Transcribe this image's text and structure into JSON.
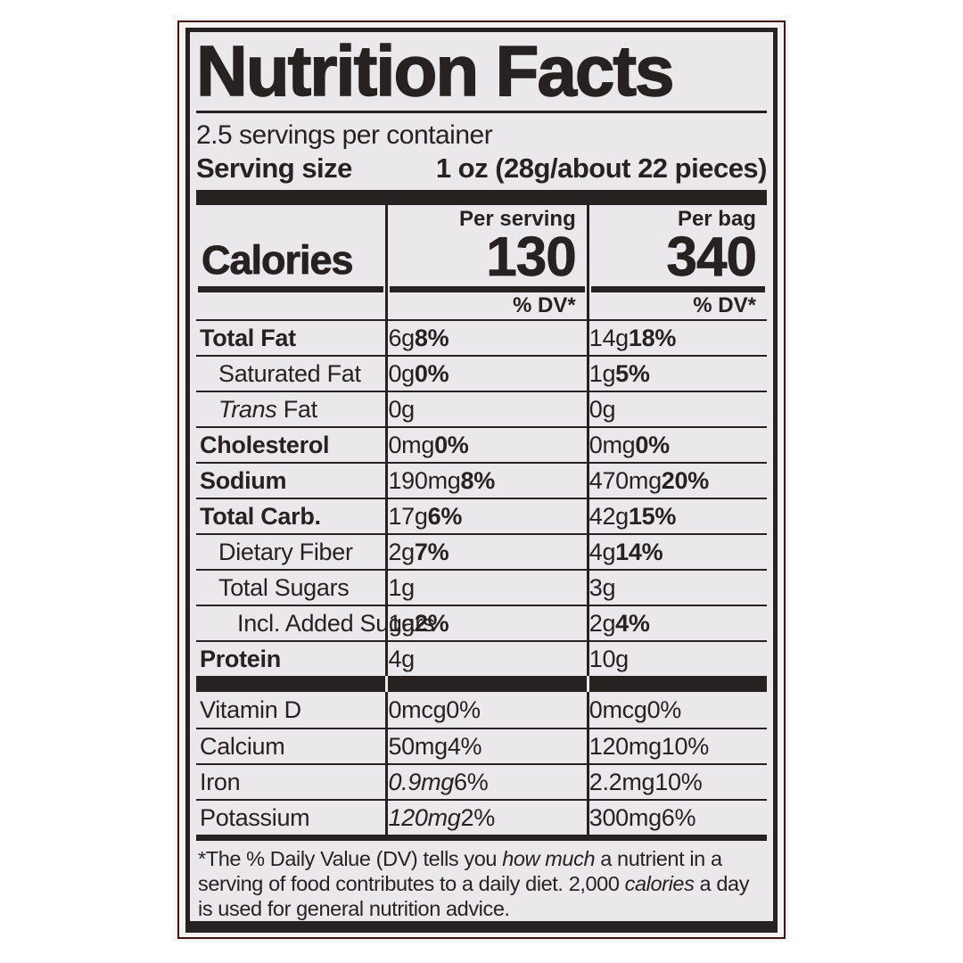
{
  "colors": {
    "ink": "#272122",
    "label_bg": "#eae8ea",
    "package_bg": "#f3f1f2",
    "package_edge": "#401410",
    "page_bg": "#ffffff"
  },
  "label": {
    "title": "Nutrition Facts",
    "servings_per_container": "2.5 servings per container",
    "serving_size_label": "Serving size",
    "serving_size_value": "1 oz (28g/about 22 pieces)",
    "calories": {
      "word": "Calories",
      "per_serving_header": "Per serving",
      "per_bag_header": "Per bag",
      "per_serving_value": "130",
      "per_bag_value": "340"
    },
    "dv_header": "% DV*",
    "nutrients": [
      {
        "name": [
          {
            "t": "Total Fat"
          }
        ],
        "bold": true,
        "indent": 0,
        "s_amt": "6g",
        "s_pct": "8%",
        "b_amt": "14g",
        "b_pct": "18%"
      },
      {
        "name": [
          {
            "t": "Saturated Fat"
          }
        ],
        "bold": false,
        "indent": 1,
        "s_amt": "0g",
        "s_pct": "0%",
        "b_amt": "1g",
        "b_pct": "5%"
      },
      {
        "name": [
          {
            "t": "Trans",
            "i": true
          },
          {
            "t": " Fat"
          }
        ],
        "bold": false,
        "indent": 1,
        "s_amt": "0g",
        "s_pct": "",
        "b_amt": "0g",
        "b_pct": ""
      },
      {
        "name": [
          {
            "t": "Cholesterol"
          }
        ],
        "bold": true,
        "indent": 0,
        "s_amt": "0mg",
        "s_pct": "0%",
        "b_amt": "0mg",
        "b_pct": "0%"
      },
      {
        "name": [
          {
            "t": "Sodium"
          }
        ],
        "bold": true,
        "indent": 0,
        "s_amt": "190mg",
        "s_pct": "8%",
        "b_amt": "470mg",
        "b_pct": "20%"
      },
      {
        "name": [
          {
            "t": "Total Carb."
          }
        ],
        "bold": true,
        "indent": 0,
        "s_amt": "17g",
        "s_pct": "6%",
        "b_amt": "42g",
        "b_pct": "15%"
      },
      {
        "name": [
          {
            "t": "Dietary Fiber"
          }
        ],
        "bold": false,
        "indent": 1,
        "s_amt": "2g",
        "s_pct": "7%",
        "b_amt": "4g",
        "b_pct": "14%"
      },
      {
        "name": [
          {
            "t": "Total Sugars"
          }
        ],
        "bold": false,
        "indent": 1,
        "s_amt": "1g",
        "s_pct": "",
        "b_amt": "3g",
        "b_pct": ""
      },
      {
        "name": [
          {
            "t": "Incl. Added Sugars"
          }
        ],
        "bold": false,
        "indent": 2,
        "s_amt": "1g",
        "s_pct": "2%",
        "b_amt": "2g",
        "b_pct": "4%"
      },
      {
        "name": [
          {
            "t": "Protein"
          }
        ],
        "bold": true,
        "indent": 0,
        "s_amt": "4g",
        "s_pct": "",
        "b_amt": "10g",
        "b_pct": ""
      }
    ],
    "micros": [
      {
        "name": [
          {
            "t": "Vitamin D"
          }
        ],
        "s_amt": "0mcg",
        "s_pct": "0%",
        "b_amt": "0mcg",
        "b_pct": "0%"
      },
      {
        "name": [
          {
            "t": "Calcium"
          }
        ],
        "s_amt": "50mg",
        "s_pct": "4%",
        "b_amt": "120mg",
        "b_pct": "10%"
      },
      {
        "name": [
          {
            "t": "Iron"
          }
        ],
        "s_amt": "0.9mg",
        "s_amt_italic": true,
        "s_pct": "6%",
        "b_amt": "2.2mg",
        "b_pct": "10%"
      },
      {
        "name": [
          {
            "t": "Potassium"
          }
        ],
        "s_amt": "120mg",
        "s_amt_italic": true,
        "s_pct": "2%",
        "b_amt": "300mg",
        "b_pct": "6%"
      }
    ],
    "footnote": [
      {
        "t": "*The % Daily Value (DV) tells you "
      },
      {
        "t": "how much",
        "i": true
      },
      {
        "t": " a nutrient in a serving of food contributes to a daily diet. 2,000 "
      },
      {
        "t": "calories",
        "i": true
      },
      {
        "t": " a day is used for general nutrition advice."
      }
    ]
  }
}
